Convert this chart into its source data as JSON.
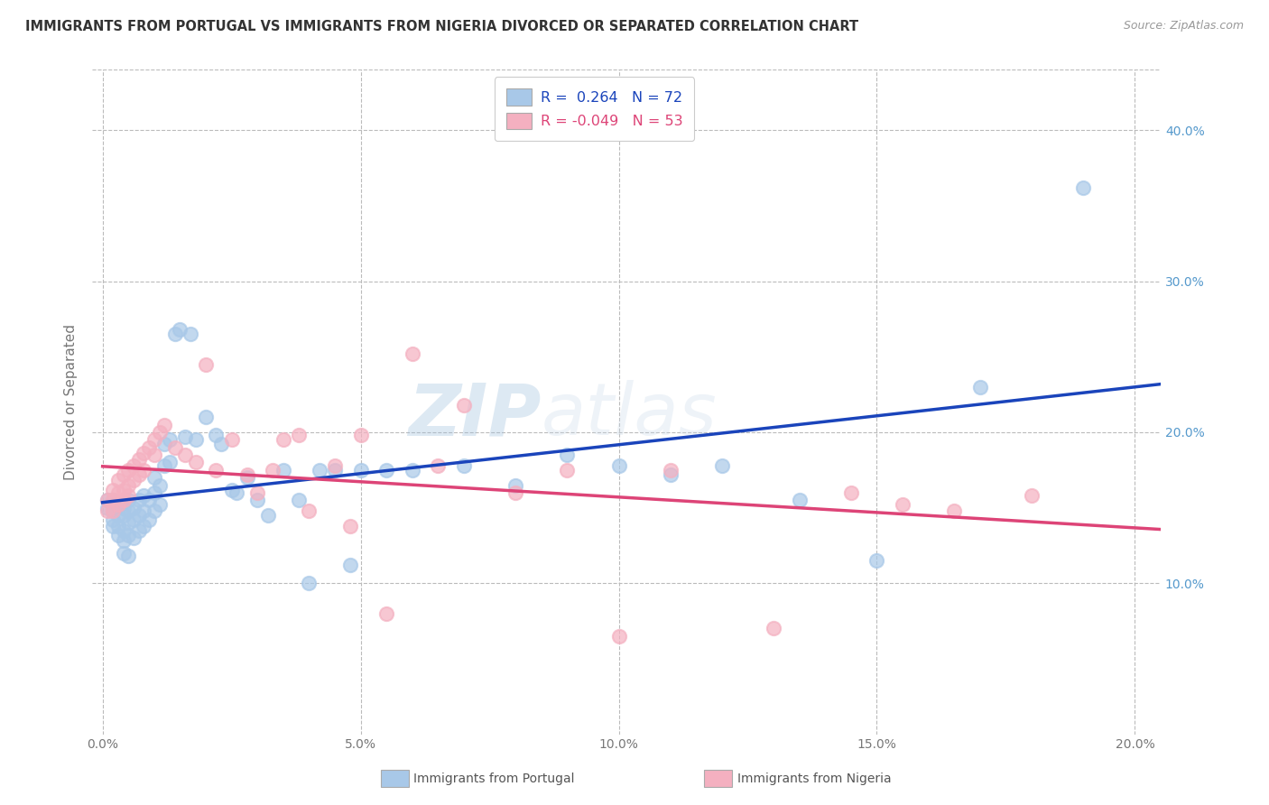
{
  "title": "IMMIGRANTS FROM PORTUGAL VS IMMIGRANTS FROM NIGERIA DIVORCED OR SEPARATED CORRELATION CHART",
  "source": "Source: ZipAtlas.com",
  "xlabel_values": [
    0.0,
    0.05,
    0.1,
    0.15,
    0.2
  ],
  "ylabel_values": [
    0.1,
    0.2,
    0.3,
    0.4
  ],
  "xlim": [
    -0.002,
    0.205
  ],
  "ylim": [
    0.0,
    0.44
  ],
  "ylabel": "Divorced or Separated",
  "legend_r_portugal": "0.264",
  "legend_n_portugal": "72",
  "legend_r_nigeria": "-0.049",
  "legend_n_nigeria": "53",
  "portugal_color": "#a8c8e8",
  "nigeria_color": "#f4b0c0",
  "portugal_line_color": "#1a44bb",
  "nigeria_line_color": "#dd4477",
  "watermark_zip": "ZIP",
  "watermark_atlas": "atlas",
  "background_color": "#ffffff",
  "grid_color": "#bbbbbb",
  "title_color": "#333333",
  "axis_label_color": "#777777",
  "right_axis_color": "#5599cc",
  "portugal_x": [
    0.001,
    0.001,
    0.002,
    0.002,
    0.002,
    0.002,
    0.003,
    0.003,
    0.003,
    0.003,
    0.004,
    0.004,
    0.004,
    0.004,
    0.004,
    0.005,
    0.005,
    0.005,
    0.005,
    0.005,
    0.006,
    0.006,
    0.006,
    0.007,
    0.007,
    0.007,
    0.008,
    0.008,
    0.008,
    0.009,
    0.009,
    0.01,
    0.01,
    0.01,
    0.011,
    0.011,
    0.012,
    0.012,
    0.013,
    0.013,
    0.014,
    0.015,
    0.016,
    0.017,
    0.018,
    0.02,
    0.022,
    0.023,
    0.025,
    0.026,
    0.028,
    0.03,
    0.032,
    0.035,
    0.038,
    0.04,
    0.042,
    0.045,
    0.048,
    0.05,
    0.055,
    0.06,
    0.07,
    0.08,
    0.09,
    0.1,
    0.11,
    0.12,
    0.135,
    0.15,
    0.17,
    0.19
  ],
  "portugal_y": [
    0.155,
    0.15,
    0.155,
    0.148,
    0.142,
    0.138,
    0.152,
    0.145,
    0.138,
    0.132,
    0.15,
    0.145,
    0.135,
    0.128,
    0.12,
    0.155,
    0.148,
    0.14,
    0.132,
    0.118,
    0.15,
    0.142,
    0.13,
    0.155,
    0.145,
    0.135,
    0.158,
    0.148,
    0.138,
    0.155,
    0.142,
    0.17,
    0.16,
    0.148,
    0.165,
    0.152,
    0.192,
    0.178,
    0.195,
    0.18,
    0.265,
    0.268,
    0.197,
    0.265,
    0.195,
    0.21,
    0.198,
    0.192,
    0.162,
    0.16,
    0.17,
    0.155,
    0.145,
    0.175,
    0.155,
    0.1,
    0.175,
    0.175,
    0.112,
    0.175,
    0.175,
    0.175,
    0.178,
    0.165,
    0.185,
    0.178,
    0.172,
    0.178,
    0.155,
    0.115,
    0.23,
    0.362
  ],
  "nigeria_x": [
    0.001,
    0.001,
    0.002,
    0.002,
    0.002,
    0.003,
    0.003,
    0.003,
    0.004,
    0.004,
    0.004,
    0.005,
    0.005,
    0.005,
    0.006,
    0.006,
    0.007,
    0.007,
    0.008,
    0.008,
    0.009,
    0.01,
    0.01,
    0.011,
    0.012,
    0.014,
    0.016,
    0.018,
    0.02,
    0.022,
    0.025,
    0.028,
    0.03,
    0.033,
    0.035,
    0.038,
    0.04,
    0.045,
    0.048,
    0.05,
    0.055,
    0.06,
    0.065,
    0.07,
    0.08,
    0.09,
    0.1,
    0.11,
    0.13,
    0.145,
    0.155,
    0.165,
    0.18
  ],
  "nigeria_y": [
    0.155,
    0.148,
    0.162,
    0.155,
    0.148,
    0.168,
    0.16,
    0.152,
    0.172,
    0.162,
    0.155,
    0.175,
    0.165,
    0.158,
    0.178,
    0.168,
    0.182,
    0.172,
    0.186,
    0.175,
    0.19,
    0.195,
    0.185,
    0.2,
    0.205,
    0.19,
    0.185,
    0.18,
    0.245,
    0.175,
    0.195,
    0.172,
    0.16,
    0.175,
    0.195,
    0.198,
    0.148,
    0.178,
    0.138,
    0.198,
    0.08,
    0.252,
    0.178,
    0.218,
    0.16,
    0.175,
    0.065,
    0.175,
    0.07,
    0.16,
    0.152,
    0.148,
    0.158
  ]
}
